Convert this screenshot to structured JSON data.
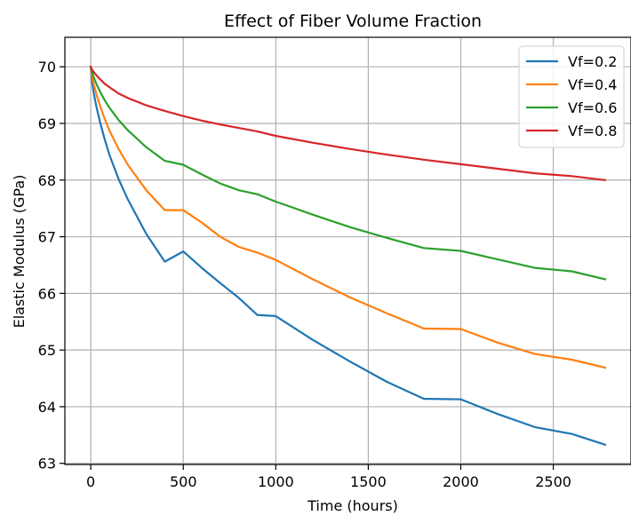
{
  "chart_data": {
    "type": "line",
    "title": "Effect of Fiber Volume Fraction",
    "xlabel": "Time (hours)",
    "ylabel": "Elastic Modulus (GPa)",
    "xlim": [
      -140,
      2920
    ],
    "ylim": [
      62.98,
      70.52
    ],
    "xticks": [
      0,
      500,
      1000,
      1500,
      2000,
      2500
    ],
    "yticks": [
      63,
      64,
      65,
      66,
      67,
      68,
      69,
      70
    ],
    "grid": true,
    "legend_position": "top-right",
    "series": [
      {
        "name": "Vf=0.2",
        "color": "#1f77b4",
        "x": [
          0,
          5,
          15,
          30,
          50,
          75,
          100,
          150,
          200,
          300,
          400,
          500,
          600,
          700,
          800,
          900,
          1000,
          1200,
          1400,
          1600,
          1800,
          2000,
          2200,
          2400,
          2600,
          2780
        ],
        "y": [
          70.0,
          69.78,
          69.55,
          69.3,
          69.02,
          68.72,
          68.45,
          68.02,
          67.66,
          67.05,
          66.56,
          66.74,
          66.45,
          66.18,
          65.92,
          65.62,
          65.6,
          65.18,
          64.8,
          64.44,
          64.14,
          64.13,
          63.87,
          63.64,
          63.52,
          63.33
        ]
      },
      {
        "name": "Vf=0.4",
        "color": "#ff7f0e",
        "x": [
          0,
          5,
          15,
          30,
          50,
          75,
          100,
          150,
          200,
          300,
          400,
          500,
          600,
          700,
          800,
          900,
          1000,
          1200,
          1400,
          1600,
          1800,
          2000,
          2200,
          2400,
          2600,
          2780
        ],
        "y": [
          70.0,
          69.86,
          69.7,
          69.52,
          69.31,
          69.08,
          68.88,
          68.55,
          68.27,
          67.82,
          67.47,
          67.47,
          67.25,
          67.0,
          66.82,
          66.72,
          66.59,
          66.25,
          65.93,
          65.65,
          65.38,
          65.37,
          65.13,
          64.93,
          64.83,
          64.69
        ]
      },
      {
        "name": "Vf=0.6",
        "color": "#2ca02c",
        "x": [
          0,
          5,
          15,
          30,
          50,
          75,
          100,
          150,
          200,
          300,
          400,
          500,
          600,
          700,
          800,
          900,
          1000,
          1200,
          1400,
          1600,
          1800,
          2000,
          2200,
          2400,
          2600,
          2780
        ],
        "y": [
          70.0,
          69.92,
          69.82,
          69.7,
          69.56,
          69.41,
          69.28,
          69.06,
          68.88,
          68.58,
          68.34,
          68.27,
          68.1,
          67.94,
          67.82,
          67.75,
          67.62,
          67.39,
          67.17,
          66.98,
          66.8,
          66.75,
          66.6,
          66.45,
          66.39,
          66.25
        ]
      },
      {
        "name": "Vf=0.8",
        "color": "#d62728",
        "x": [
          0,
          5,
          15,
          30,
          50,
          75,
          100,
          150,
          200,
          300,
          400,
          500,
          600,
          700,
          800,
          900,
          1000,
          1200,
          1400,
          1600,
          1800,
          2000,
          2200,
          2400,
          2600,
          2780
        ],
        "y": [
          70.0,
          69.96,
          69.91,
          69.85,
          69.78,
          69.7,
          69.64,
          69.53,
          69.45,
          69.32,
          69.22,
          69.13,
          69.05,
          68.98,
          68.92,
          68.86,
          68.78,
          68.66,
          68.55,
          68.45,
          68.36,
          68.28,
          68.2,
          68.12,
          68.07,
          68.0
        ]
      }
    ]
  }
}
